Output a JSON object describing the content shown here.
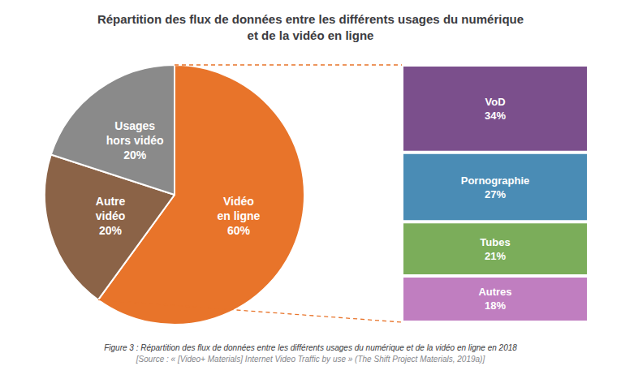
{
  "chart_data": [
    {
      "type": "pie",
      "title": "Répartition des flux de données entre les différents usages du numérique\net de la vidéo en ligne",
      "categories": [
        "Vidéo\nen ligne",
        "Autre\nvidéo",
        "Usages\nhors vidéo"
      ],
      "values": [
        60,
        20,
        20
      ],
      "value_labels": [
        "60%",
        "20%",
        "20%"
      ],
      "colors": [
        "#E8742A",
        "#8B6347",
        "#8A8A8A"
      ],
      "data_labels": true,
      "legend": false,
      "annotations": [
        "Figure 3 : Répartition des flux de données entre les différents usages du numérique et de la vidéo en ligne en 2018",
        "[Source : « [Video+ Materials] Internet Video Traffic by use » (The Shift Project Materials, 2019a)]"
      ]
    },
    {
      "type": "bar",
      "categories": [
        null
      ],
      "stacked": true,
      "series": [
        {
          "name": "VoD",
          "color": "#7B4F8C",
          "values": [
            34
          ],
          "value_labels": [
            "34%"
          ]
        },
        {
          "name": "Pornographie",
          "color": "#4A8CB5",
          "values": [
            27
          ],
          "value_labels": [
            "27%"
          ]
        },
        {
          "name": "Tubes",
          "color": "#7BAD5A",
          "values": [
            21
          ],
          "value_labels": [
            "21%"
          ]
        },
        {
          "name": "Autres",
          "color": "#C07EC0",
          "values": [
            18
          ],
          "value_labels": [
            "18%"
          ]
        }
      ],
      "ylim": [
        0,
        100
      ],
      "tick_labels": false,
      "grid": false,
      "legend": false,
      "data_labels": true
    }
  ]
}
